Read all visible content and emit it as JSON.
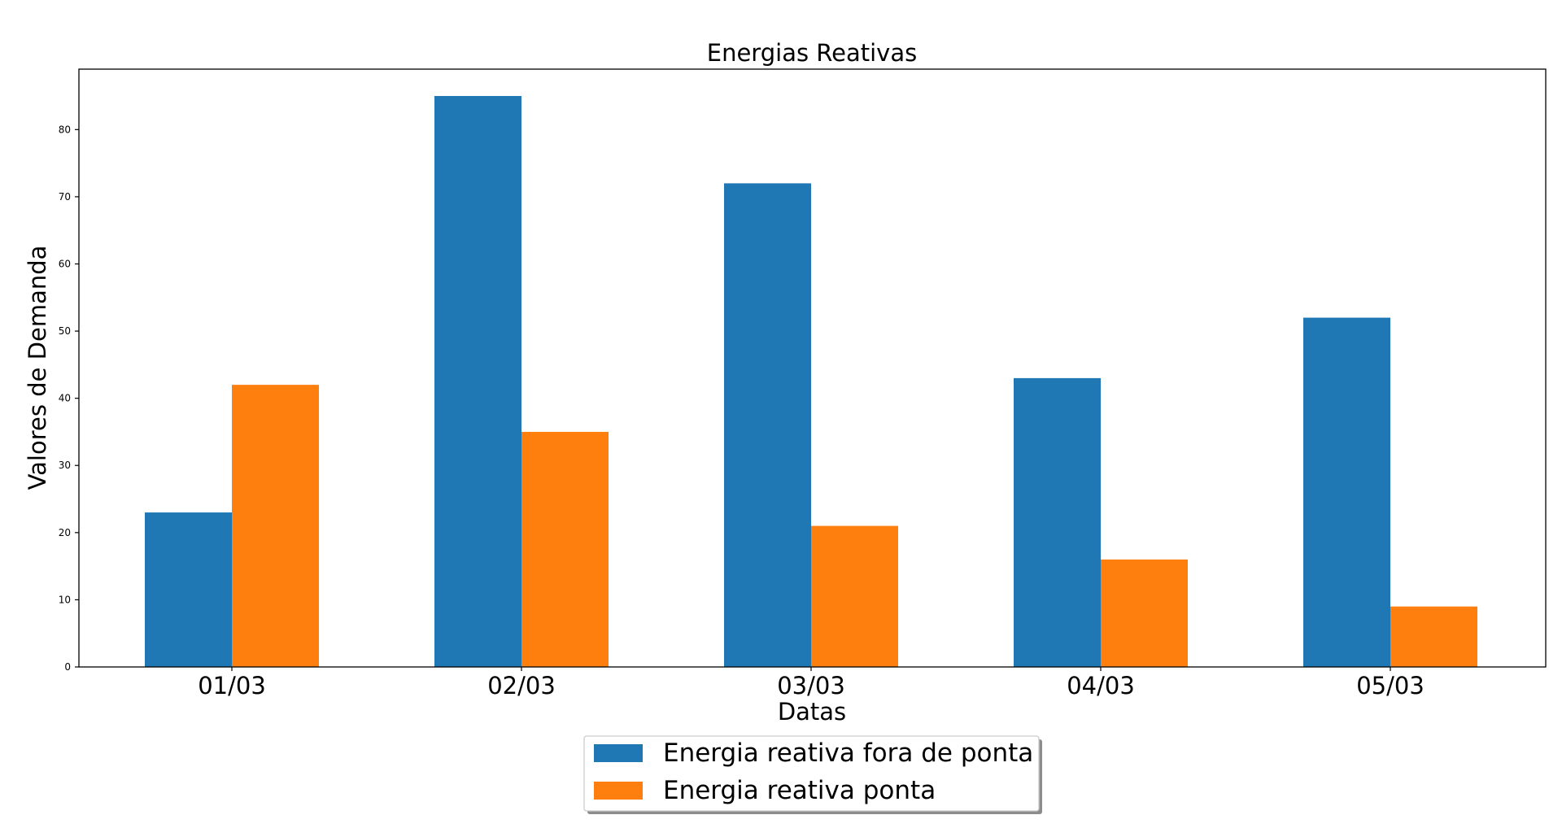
{
  "chart_data": {
    "type": "bar",
    "title": "Energias Reativas",
    "xlabel": "Datas",
    "ylabel": "Valores de Demanda",
    "categories": [
      "01/03",
      "02/03",
      "03/03",
      "04/03",
      "05/03"
    ],
    "series": [
      {
        "name": "Energia reativa fora de ponta",
        "values": [
          23,
          85,
          72,
          43,
          52
        ],
        "color": "#1f77b4"
      },
      {
        "name": "Energia reativa ponta",
        "values": [
          42,
          35,
          21,
          16,
          9
        ],
        "color": "#ff7f0e"
      }
    ],
    "ylim": [
      0,
      89
    ],
    "yticks": [
      0,
      10,
      20,
      30,
      40,
      50,
      60,
      70,
      80
    ],
    "grid": false,
    "legend_position": "bottom-center"
  }
}
